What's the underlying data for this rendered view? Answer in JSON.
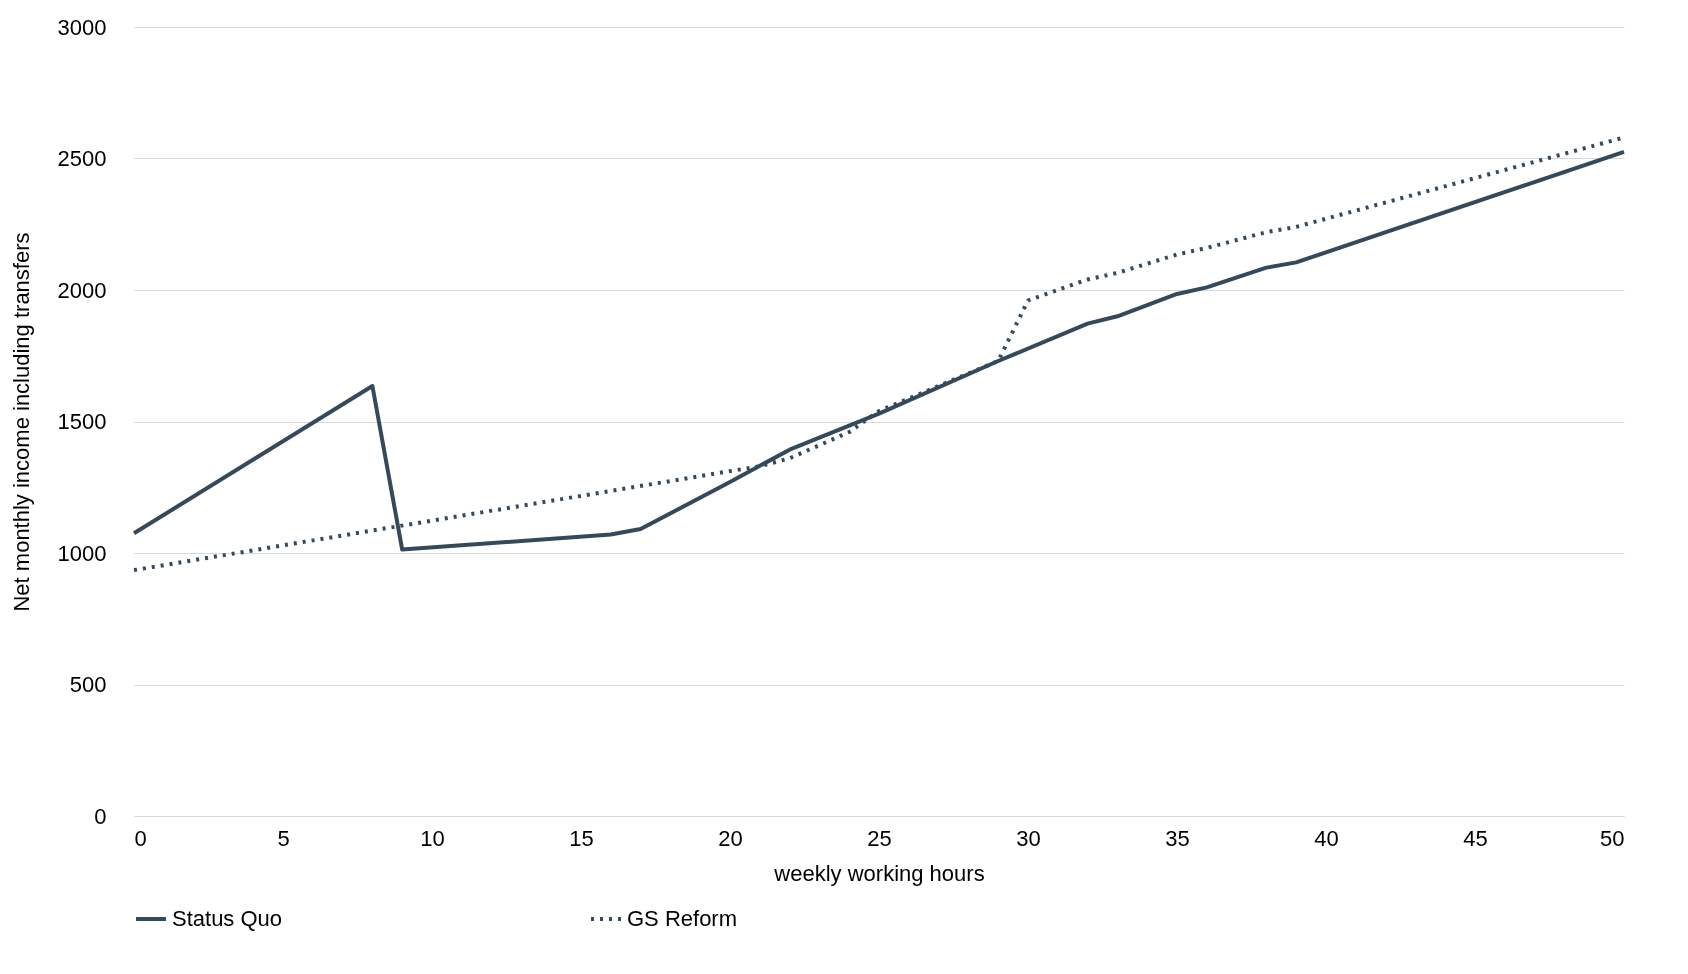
{
  "chart_data": {
    "type": "line",
    "xlabel": "weekly working hours",
    "ylabel": "Net monthly income including transfers",
    "xlim": [
      0,
      50
    ],
    "ylim": [
      0,
      3000
    ],
    "xticks": [
      0,
      5,
      10,
      15,
      20,
      25,
      30,
      35,
      40,
      45,
      50
    ],
    "yticks": [
      0,
      500,
      1000,
      1500,
      2000,
      2500,
      3000
    ],
    "grid": "y",
    "legend": "bottom",
    "series": [
      {
        "name": "Status Quo",
        "color": "#34495b",
        "line_style": "solid",
        "x": [
          0,
          8,
          9,
          16,
          17,
          20,
          22,
          25,
          29,
          32,
          33,
          35,
          36,
          38,
          39,
          50
        ],
        "values": [
          1075,
          1635,
          1013,
          1070,
          1091,
          1270,
          1393,
          1530,
          1730,
          1872,
          1900,
          1985,
          2010,
          2085,
          2105,
          2525
        ]
      },
      {
        "name": "GS Reform",
        "color": "#34495b",
        "line_style": "dotted",
        "x": [
          0,
          21,
          22,
          24,
          25,
          29,
          30,
          32,
          33,
          35,
          36,
          38,
          39,
          50
        ],
        "values": [
          935,
          1330,
          1360,
          1460,
          1540,
          1730,
          1960,
          2040,
          2065,
          2135,
          2160,
          2220,
          2240,
          2580
        ]
      }
    ]
  }
}
